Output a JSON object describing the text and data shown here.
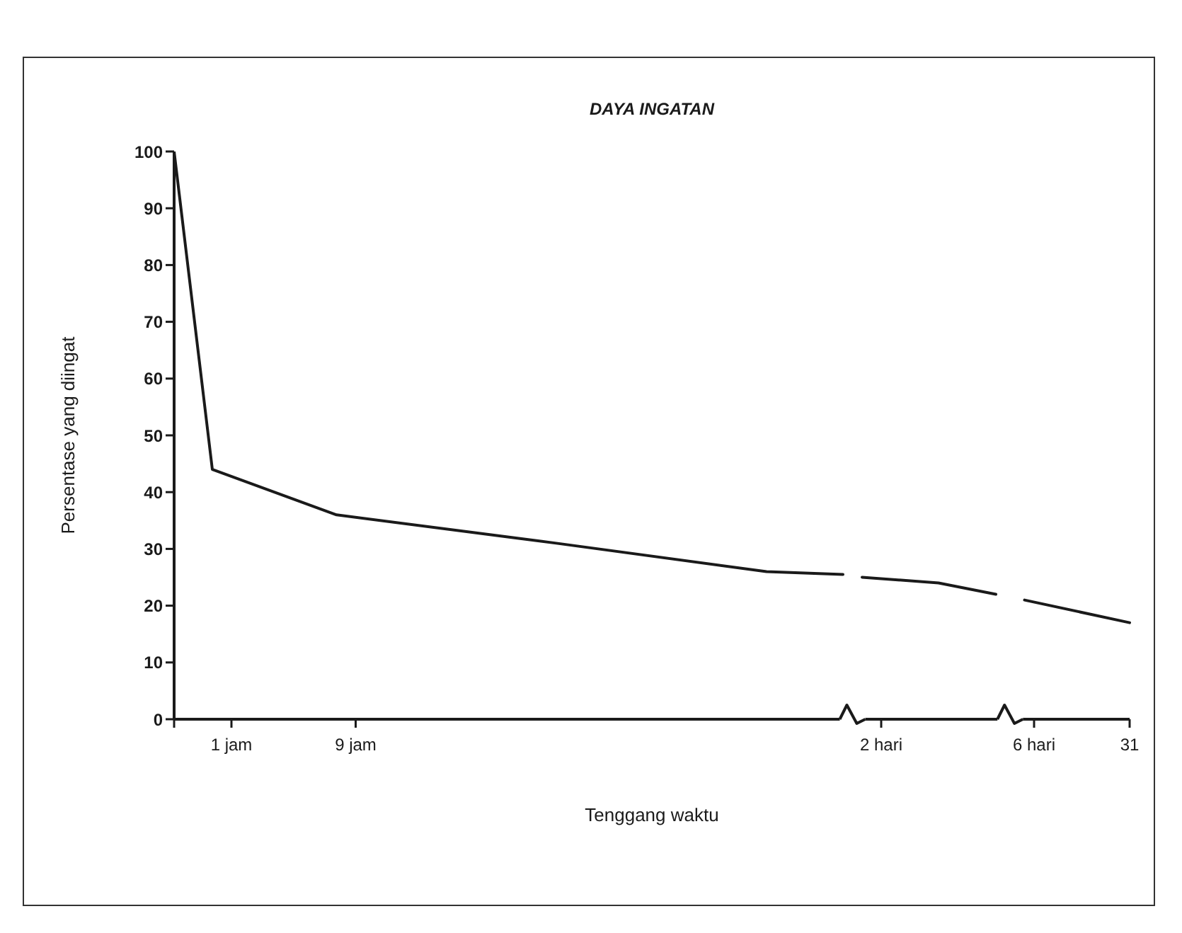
{
  "chart_data": {
    "type": "line",
    "title": "DAYA INGATAN",
    "xlabel": "Tenggang waktu",
    "ylabel": "Persentase yang diingat",
    "categories": [
      null,
      null,
      null,
      null,
      null,
      null,
      "1 jam",
      null,
      null,
      null,
      null,
      null,
      null,
      null,
      null,
      null,
      null,
      null,
      null,
      "9 jam",
      null,
      null,
      null,
      null,
      null,
      null,
      null,
      null,
      null,
      null,
      null,
      null,
      null,
      null,
      null,
      null,
      null,
      null,
      null,
      null,
      null,
      null,
      null,
      null,
      null,
      null,
      null,
      null,
      null,
      null,
      null,
      null,
      null,
      null,
      null,
      null,
      null,
      null,
      null,
      null,
      null,
      null,
      null,
      null,
      null,
      null,
      null,
      null,
      null,
      null,
      null,
      null,
      null,
      null,
      "2 hari",
      null,
      null,
      null,
      null,
      null,
      null,
      null,
      null,
      null,
      null,
      null,
      null,
      null,
      null,
      null,
      "6 hari",
      null,
      null,
      null,
      null,
      null,
      null,
      null,
      null,
      null,
      "31"
    ],
    "series": [
      {
        "color": "#1a1a1a",
        "values": [
          100,
          null,
          null,
          null,
          44,
          null,
          null,
          null,
          null,
          null,
          null,
          null,
          null,
          null,
          null,
          null,
          null,
          36,
          null,
          null,
          null,
          null,
          null,
          null,
          null,
          null,
          null,
          null,
          null,
          null,
          null,
          null,
          null,
          null,
          null,
          null,
          null,
          null,
          null,
          null,
          31,
          null,
          null,
          null,
          null,
          null,
          null,
          null,
          null,
          null,
          null,
          null,
          null,
          null,
          null,
          null,
          null,
          null,
          null,
          null,
          null,
          null,
          26,
          null,
          null,
          null,
          null,
          null,
          null,
          null,
          25.5,
          null,
          null,
          null,
          null,
          null,
          null,
          null,
          null,
          null,
          null,
          null,
          null,
          null,
          null,
          null,
          null,
          null,
          null,
          null,
          null,
          null,
          null,
          null,
          null,
          null,
          null,
          null,
          null,
          null,
          null
        ]
      },
      {
        "color": "#1a1a1a",
        "values": [
          null,
          null,
          null,
          null,
          null,
          null,
          null,
          null,
          null,
          null,
          null,
          null,
          null,
          null,
          null,
          null,
          null,
          null,
          null,
          null,
          null,
          null,
          null,
          null,
          null,
          null,
          null,
          null,
          null,
          null,
          null,
          null,
          null,
          null,
          null,
          null,
          null,
          null,
          null,
          null,
          null,
          null,
          null,
          null,
          null,
          null,
          null,
          null,
          null,
          null,
          null,
          null,
          null,
          null,
          null,
          null,
          null,
          null,
          null,
          null,
          null,
          null,
          null,
          null,
          null,
          null,
          null,
          null,
          null,
          null,
          null,
          null,
          25,
          null,
          null,
          null,
          null,
          null,
          null,
          null,
          24,
          null,
          null,
          null,
          null,
          null,
          22,
          null,
          null,
          null,
          null,
          null,
          null,
          null,
          null,
          null,
          null,
          null,
          null,
          null,
          null
        ]
      },
      {
        "color": "#1a1a1a",
        "values": [
          null,
          null,
          null,
          null,
          null,
          null,
          null,
          null,
          null,
          null,
          null,
          null,
          null,
          null,
          null,
          null,
          null,
          null,
          null,
          null,
          null,
          null,
          null,
          null,
          null,
          null,
          null,
          null,
          null,
          null,
          null,
          null,
          null,
          null,
          null,
          null,
          null,
          null,
          null,
          null,
          null,
          null,
          null,
          null,
          null,
          null,
          null,
          null,
          null,
          null,
          null,
          null,
          null,
          null,
          null,
          null,
          null,
          null,
          null,
          null,
          null,
          null,
          null,
          null,
          null,
          null,
          null,
          null,
          null,
          null,
          null,
          null,
          null,
          null,
          null,
          null,
          null,
          null,
          null,
          null,
          null,
          null,
          null,
          null,
          null,
          null,
          null,
          null,
          null,
          21,
          null,
          null,
          null,
          null,
          null,
          null,
          null,
          null,
          null,
          null,
          17
        ]
      }
    ],
    "ylim": [
      0,
      100
    ],
    "yticks": [
      0,
      10,
      20,
      30,
      40,
      50,
      60,
      70,
      80,
      90,
      100
    ]
  }
}
